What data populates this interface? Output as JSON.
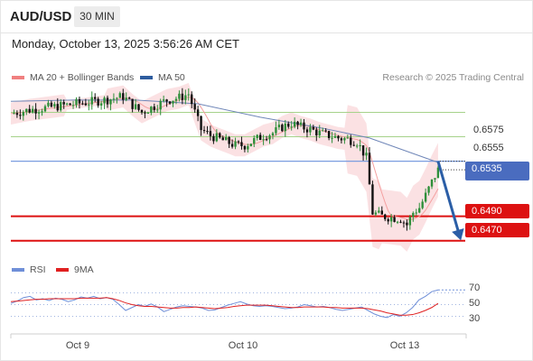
{
  "header": {
    "symbol": "AUD/USD",
    "timeframe": "30 MIN"
  },
  "date_line": "Monday, October 13, 2025 3:56:26 AM CET",
  "legend": {
    "ma20_label": "MA 20 + Bollinger Bands",
    "ma50_label": "MA 50",
    "ma20_color": "#f08080",
    "ma50_color": "#2e5c9e"
  },
  "credit": "Research © 2025 Trading Central",
  "price_tags": {
    "current": "0.6535",
    "current_hidden": "0.6528",
    "support1": "0.6490",
    "support2": "0.6470"
  },
  "level_labels": {
    "r1": "0.6555",
    "r2": "0.6575"
  },
  "rsi_legend": {
    "rsi_label": "RSI",
    "ma_label": "9MA",
    "rsi_color": "#6f8fd8",
    "ma_color": "#e02020"
  },
  "rsi_axis": {
    "t70": "70",
    "t50": "50",
    "t30": "30"
  },
  "x_axis": {
    "d1": "Oct 9",
    "d2": "Oct 10",
    "d3": "Oct 13"
  },
  "chart_data": [
    {
      "type": "candlestick",
      "pivot": 0.6535,
      "resistance": [
        0.6555,
        0.6575
      ],
      "support": [
        0.649,
        0.647
      ],
      "last_price": 0.6528,
      "ylim": [
        0.6458,
        0.6596
      ],
      "x_labels": [
        "Oct 9",
        "Oct 10",
        "Oct 13"
      ],
      "close_path": [
        [
          0,
          0.6574
        ],
        [
          6,
          0.6577
        ],
        [
          12,
          0.6579
        ],
        [
          18,
          0.6581
        ],
        [
          24,
          0.6583
        ],
        [
          30,
          0.6585
        ],
        [
          36,
          0.6588
        ],
        [
          39,
          0.6581
        ],
        [
          42,
          0.6575
        ],
        [
          46,
          0.658
        ],
        [
          50,
          0.6585
        ],
        [
          54,
          0.6587
        ],
        [
          57,
          0.659
        ],
        [
          59,
          0.6575
        ],
        [
          61,
          0.6561
        ],
        [
          64,
          0.6556
        ],
        [
          68,
          0.6552
        ],
        [
          72,
          0.6548
        ],
        [
          75,
          0.6548
        ],
        [
          78,
          0.6552
        ],
        [
          81,
          0.6556
        ],
        [
          84,
          0.6558
        ],
        [
          87,
          0.6563
        ],
        [
          90,
          0.6566
        ],
        [
          93,
          0.6563
        ],
        [
          96,
          0.6561
        ],
        [
          99,
          0.6558
        ],
        [
          102,
          0.6556
        ],
        [
          105,
          0.6554
        ],
        [
          108,
          0.6553
        ],
        [
          111,
          0.6551
        ],
        [
          114,
          0.6538
        ],
        [
          116,
          0.6493
        ],
        [
          119,
          0.649
        ],
        [
          122,
          0.6489
        ],
        [
          125,
          0.6488
        ],
        [
          127,
          0.6483
        ],
        [
          129,
          0.6493
        ],
        [
          131,
          0.6497
        ],
        [
          133,
          0.6507
        ],
        [
          135,
          0.6518
        ],
        [
          137,
          0.6528
        ]
      ],
      "ma50_path": [
        [
          0,
          0.6584
        ],
        [
          20,
          0.6585
        ],
        [
          40,
          0.6585
        ],
        [
          60,
          0.6582
        ],
        [
          80,
          0.6571
        ],
        [
          100,
          0.6562
        ],
        [
          115,
          0.6554
        ],
        [
          137,
          0.6534
        ]
      ],
      "forecast": [
        [
          137,
          0.6535
        ],
        [
          146,
          0.647
        ]
      ]
    },
    {
      "type": "line",
      "series": [
        {
          "name": "RSI",
          "values": [
            52,
            56,
            62,
            64,
            58,
            60,
            57,
            61,
            59,
            55,
            58,
            63,
            61,
            64,
            60,
            62,
            59,
            50,
            40,
            45,
            50,
            47,
            51,
            46,
            38,
            42,
            46,
            48,
            47,
            46,
            44,
            40,
            41,
            45,
            49,
            52,
            55,
            51,
            48,
            47,
            48,
            47,
            45,
            43,
            44,
            46,
            50,
            48,
            46,
            47,
            45,
            42,
            40,
            42,
            44,
            46,
            40,
            34,
            30,
            28,
            33,
            30,
            36,
            45,
            58,
            64,
            72,
            75
          ]
        },
        {
          "name": "9MA",
          "values": [
            55,
            56,
            57,
            58,
            59,
            59,
            60,
            60,
            60,
            60,
            60,
            61,
            61,
            61,
            61,
            62,
            60,
            57,
            53,
            50,
            48,
            47,
            47,
            46,
            45,
            44,
            44,
            45,
            45,
            46,
            45,
            44,
            43,
            44,
            45,
            47,
            48,
            49,
            49,
            49,
            49,
            48,
            47,
            46,
            45,
            45,
            46,
            46,
            46,
            46,
            45,
            45,
            44,
            44,
            44,
            44,
            43,
            41,
            39,
            36,
            34,
            32,
            32,
            33,
            36,
            40,
            45,
            52
          ]
        }
      ],
      "ylim": [
        0,
        100
      ],
      "levels": [
        70,
        50,
        30
      ]
    }
  ]
}
